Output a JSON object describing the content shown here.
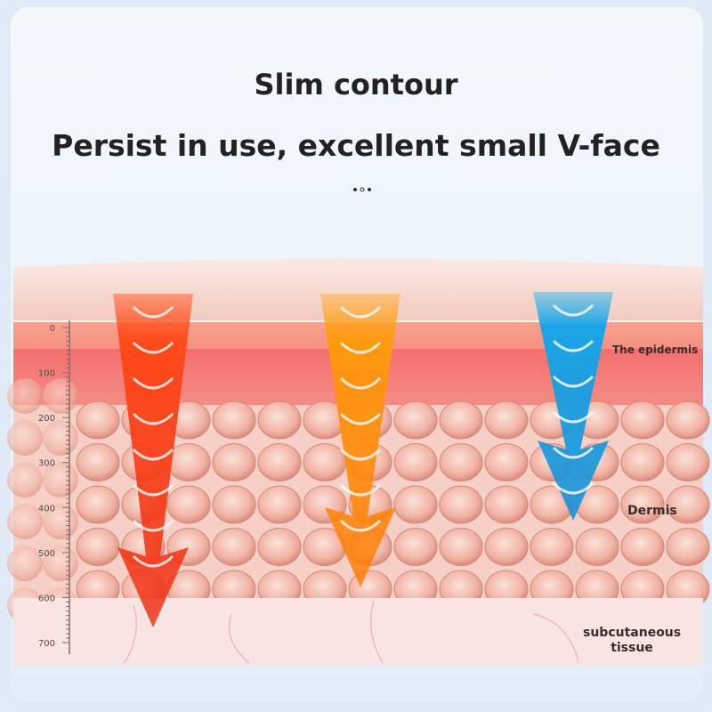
{
  "header": {
    "title": "Slim contour",
    "subtitle": "Persist in use, excellent small V-face"
  },
  "scale": [
    0,
    100,
    200,
    300,
    400,
    500,
    600,
    700
  ],
  "layers": {
    "epidermis": "The epidermis",
    "dermis": "Dermis",
    "subcutaneous": "subcutaneous tissue"
  }
}
